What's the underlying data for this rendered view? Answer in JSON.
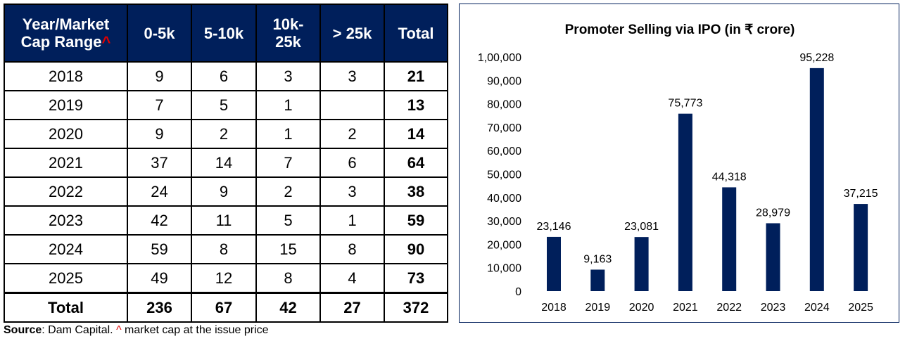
{
  "table": {
    "headers": [
      "Year/Market Cap Range",
      "0-5k",
      "5-10k",
      "10k-25k",
      "> 25k",
      "Total"
    ],
    "header_line1": "Year/Market",
    "header_line2": "Cap Range",
    "caret": "^",
    "h_10k_1": "10k-",
    "h_10k_2": "25k",
    "rows": [
      [
        "2018",
        "9",
        "6",
        "3",
        "3",
        "21"
      ],
      [
        "2019",
        "7",
        "5",
        "1",
        "",
        "13"
      ],
      [
        "2020",
        "9",
        "2",
        "1",
        "2",
        "14"
      ],
      [
        "2021",
        "37",
        "14",
        "7",
        "6",
        "64"
      ],
      [
        "2022",
        "24",
        "9",
        "2",
        "3",
        "38"
      ],
      [
        "2023",
        "42",
        "11",
        "5",
        "1",
        "59"
      ],
      [
        "2024",
        "59",
        "8",
        "15",
        "8",
        "90"
      ],
      [
        "2025",
        "49",
        "12",
        "8",
        "4",
        "73"
      ]
    ],
    "total": [
      "Total",
      "236",
      "67",
      "42",
      "27",
      "372"
    ]
  },
  "source": {
    "label": "Source",
    "text": ": Dam Capital. ",
    "caret": "^",
    "note": " market cap at the issue price"
  },
  "colors": {
    "header_bg": "#001f5b",
    "bar": "#001f5b",
    "caret": "#e00000"
  },
  "chart_data": {
    "type": "bar",
    "title": "Promoter Selling via IPO (in ₹ crore)",
    "categories": [
      "2018",
      "2019",
      "2020",
      "2021",
      "2022",
      "2023",
      "2024",
      "2025"
    ],
    "values": [
      23146,
      9163,
      23081,
      75773,
      44318,
      28979,
      95228,
      37215
    ],
    "data_labels": [
      "23,146",
      "9,163",
      "23,081",
      "75,773",
      "44,318",
      "28,979",
      "95,228",
      "37,215"
    ],
    "yticks": [
      0,
      10000,
      20000,
      30000,
      40000,
      50000,
      60000,
      70000,
      80000,
      90000,
      100000
    ],
    "ytick_labels": [
      "0",
      "10,000",
      "20,000",
      "30,000",
      "40,000",
      "50,000",
      "60,000",
      "70,000",
      "80,000",
      "90,000",
      "1,00,000"
    ],
    "ylim": [
      0,
      100000
    ],
    "xlabel": "",
    "ylabel": "",
    "grid": false,
    "legend": "none"
  }
}
